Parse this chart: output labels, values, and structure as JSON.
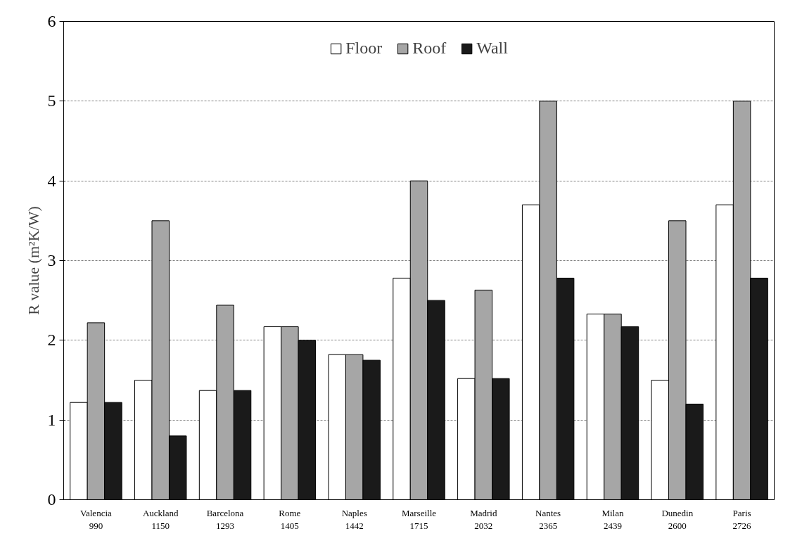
{
  "chart_data": {
    "type": "bar",
    "ylabel": "R value (m²K/W)",
    "categories": [
      "Valencia\n990",
      "Auckland\n1150",
      "Barcelona\n1293",
      "Rome\n1405",
      "Naples\n1442",
      "Marseille\n1715",
      "Madrid\n2032",
      "Nantes\n2365",
      "Milan\n2439",
      "Dunedin\n2600",
      "Paris\n2726"
    ],
    "series": [
      {
        "name": "Floor",
        "color": "#ffffff",
        "values": [
          1.22,
          1.5,
          1.37,
          2.17,
          1.82,
          2.78,
          1.52,
          3.7,
          2.33,
          1.5,
          3.7
        ]
      },
      {
        "name": "Roof",
        "color": "#a6a6a6",
        "values": [
          2.22,
          3.5,
          2.44,
          2.17,
          1.82,
          4.0,
          2.63,
          5.0,
          2.33,
          3.5,
          5.0
        ]
      },
      {
        "name": "Wall",
        "color": "#1a1a1a",
        "values": [
          1.22,
          0.8,
          1.37,
          2.0,
          1.75,
          2.5,
          1.52,
          2.78,
          2.17,
          1.2,
          2.78
        ]
      }
    ],
    "ylim": [
      0,
      6
    ],
    "yticks": [
      0,
      1,
      2,
      3,
      4,
      5,
      6
    ],
    "grid": "y",
    "legend": "top"
  }
}
